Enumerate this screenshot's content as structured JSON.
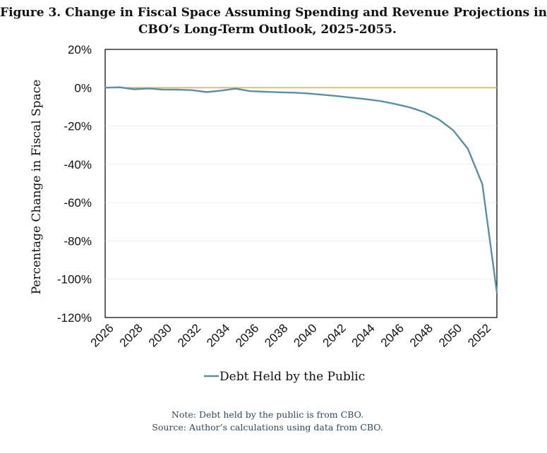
{
  "title_lines": [
    "Figure 3. Change in Fiscal Space Assuming Spending and Revenue Projections in",
    "CBO’s Long-Term Outlook, 2025-2055."
  ],
  "note": "Note: Debt held by the public is from CBO.",
  "source": "Source: Author’s calculations using data from CBO.",
  "colors": {
    "series": "#5b8fa8",
    "zero_line": "#e8b04a",
    "frame": "#000000"
  },
  "chart_data": {
    "type": "line",
    "title": "Figure 3. Change in Fiscal Space Assuming Spending and Revenue Projections in CBO’s Long-Term Outlook, 2025-2055.",
    "xlabel": "",
    "ylabel": "Percentage Change in Fiscal Space",
    "xlim": [
      2026,
      2053
    ],
    "ylim": [
      -120,
      20
    ],
    "x_ticks": [
      "2026",
      "2028",
      "2030",
      "2032",
      "2034",
      "2036",
      "2038",
      "2040",
      "2042",
      "2044",
      "2046",
      "2048",
      "2050",
      "2052"
    ],
    "y_ticks": [
      "20%",
      "0%",
      "-20%",
      "-40%",
      "-60%",
      "-80%",
      "-100%",
      "-120%"
    ],
    "y_tick_values": [
      20,
      0,
      -20,
      -40,
      -60,
      -80,
      -100,
      -120
    ],
    "reference_line": 0,
    "grid": false,
    "legend_position": "bottom",
    "x": [
      2026,
      2027,
      2028,
      2029,
      2030,
      2031,
      2032,
      2033,
      2034,
      2035,
      2036,
      2037,
      2038,
      2039,
      2040,
      2041,
      2042,
      2043,
      2044,
      2045,
      2046,
      2047,
      2048,
      2049,
      2050,
      2051,
      2052,
      2053
    ],
    "series": [
      {
        "name": "Debt Held by the Public",
        "values": [
          0,
          0.2,
          -0.8,
          -0.4,
          -1.0,
          -1.0,
          -1.3,
          -2.3,
          -1.5,
          -0.5,
          -1.8,
          -2.1,
          -2.4,
          -2.6,
          -3.0,
          -3.7,
          -4.4,
          -5.2,
          -6.0,
          -7.0,
          -8.5,
          -10.3,
          -12.8,
          -16.6,
          -22.3,
          -31.9,
          -50.4,
          -107.0
        ]
      }
    ]
  }
}
